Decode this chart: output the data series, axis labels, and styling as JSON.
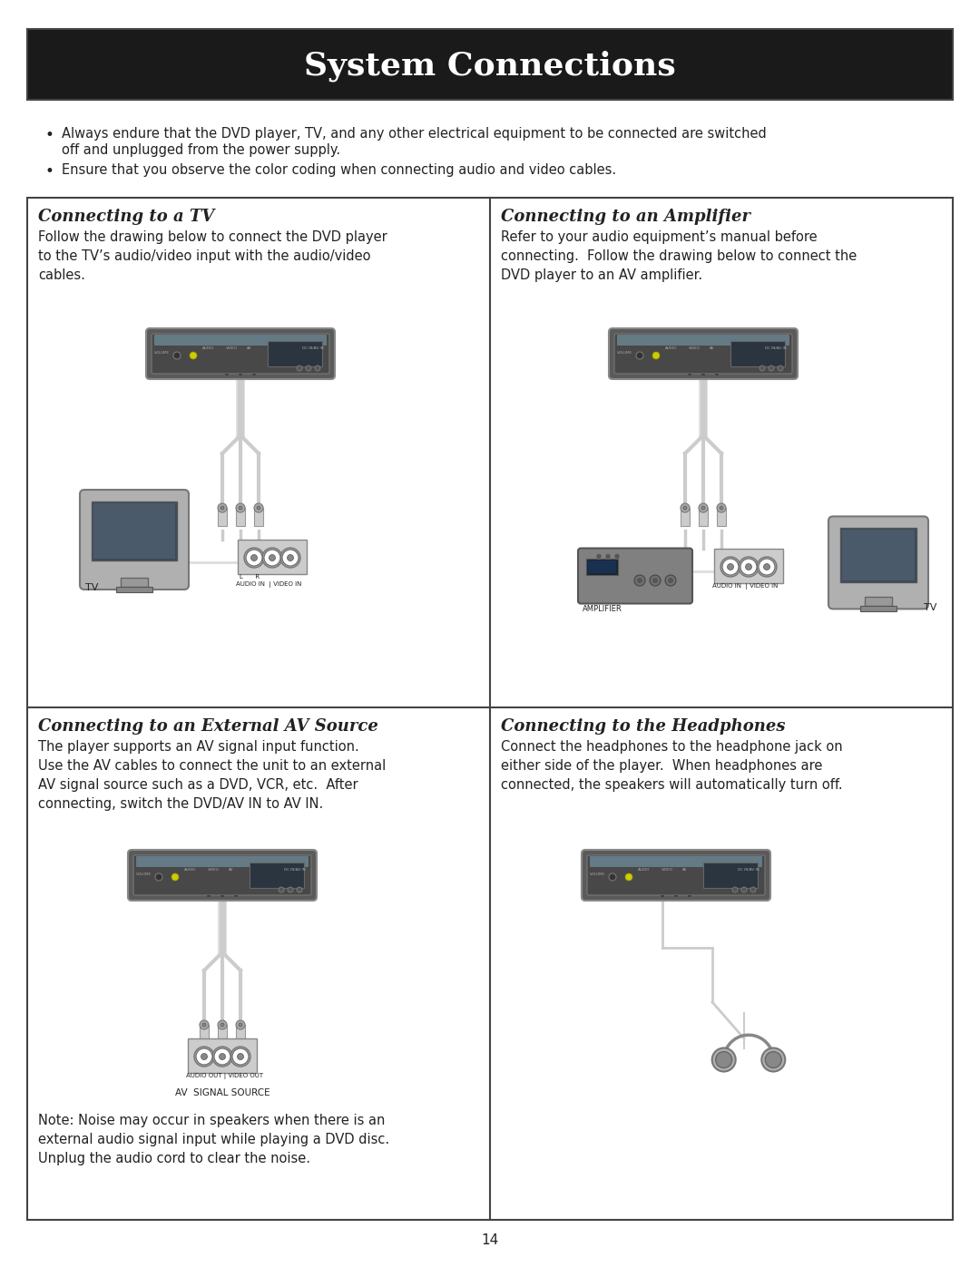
{
  "title": "System Connections",
  "title_bg": "#1a1a1a",
  "title_color": "#ffffff",
  "title_fontsize": 26,
  "page_bg": "#ffffff",
  "bullet1_line1": "Always endure that the DVD player, TV, and any other electrical equipment to be connected are switched",
  "bullet1_line2": "off and unplugged from the power supply.",
  "bullet2": "Ensure that you observe the color coding when connecting audio and video cables.",
  "section1_title": "Connecting to a TV",
  "section1_text": "Follow the drawing below to connect the DVD player\nto the TV’s audio/video input with the audio/video\ncables.",
  "section2_title": "Connecting to an Amplifier",
  "section2_text": "Refer to your audio equipment’s manual before\nconnecting.  Follow the drawing below to connect the\nDVD player to an AV amplifier.",
  "section3_title": "Connecting to an External AV Source",
  "section3_text": "The player supports an AV signal input function.\nUse the AV cables to connect the unit to an external\nAV signal source such as a DVD, VCR, etc.  After\nconnecting, switch the DVD/AV IN to AV IN.",
  "section3_note": "Note: Noise may occur in speakers when there is an\nexternal audio signal input while playing a DVD disc.\nUnplug the audio cord to clear the noise.",
  "section4_title": "Connecting to the Headphones",
  "section4_text": "Connect the headphones to the headphone jack on\neither side of the player.  When headphones are\nconnected, the speakers will automatically turn off.",
  "page_number": "14",
  "border_color": "#444444",
  "text_color": "#222222",
  "body_fontsize": 10.5,
  "section_title_fontsize": 13
}
